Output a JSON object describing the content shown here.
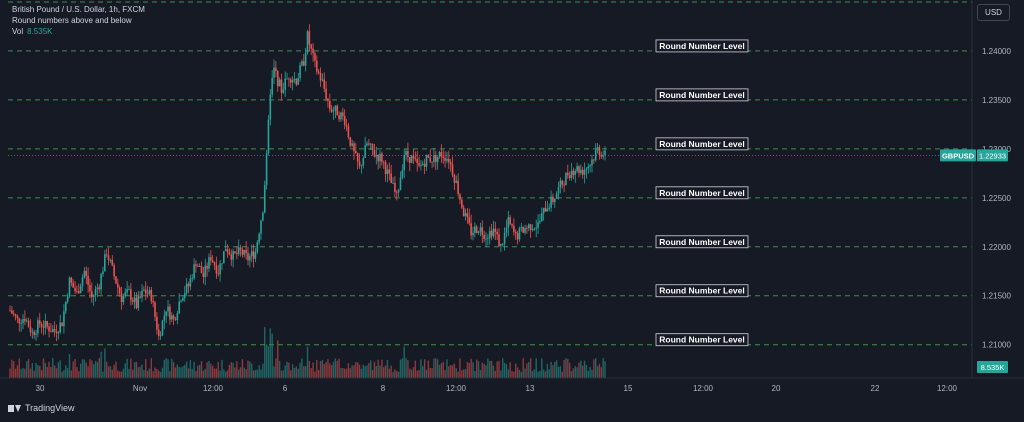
{
  "legend": {
    "symbol_line": "British Pound / U.S. Dollar, 1h, FXCM",
    "indicator_line": "Round numbers above and below",
    "volume_label": "Vol",
    "volume_value": "8.535K"
  },
  "currency_button": "USD",
  "branding": "TradingView",
  "chart_data": {
    "type": "candlestick",
    "symbol": "GBPUSD",
    "timeframe": "1h",
    "ylim": [
      1.2066,
      1.2452
    ],
    "y_ticks": [
      {
        "value": 1.21,
        "label": "1.21000"
      },
      {
        "value": 1.215,
        "label": "1.21500"
      },
      {
        "value": 1.22,
        "label": "1.22000"
      },
      {
        "value": 1.225,
        "label": "1.22500"
      },
      {
        "value": 1.23,
        "label": "1.23000"
      },
      {
        "value": 1.235,
        "label": "1.23500"
      },
      {
        "value": 1.24,
        "label": "1.24000"
      }
    ],
    "x_ticks": [
      "30",
      "Nov",
      "12:00",
      "6",
      "8",
      "12:00",
      "13",
      "15",
      "12:00",
      "20",
      "22",
      "12:00"
    ],
    "price_levels": [
      1.21,
      1.215,
      1.22,
      1.225,
      1.23,
      1.235,
      1.24
    ],
    "level_annotations": [
      {
        "price": 1.24,
        "text": "Round Number Level"
      },
      {
        "price": 1.235,
        "text": "Round Number Level"
      },
      {
        "price": 1.23,
        "text": "Round Number Level"
      },
      {
        "price": 1.225,
        "text": "Round Number Level"
      },
      {
        "price": 1.22,
        "text": "Round Number Level"
      },
      {
        "price": 1.215,
        "text": "Round Number Level"
      },
      {
        "price": 1.21,
        "text": "Round Number Level"
      }
    ],
    "last_price": {
      "symbol": "GBPUSD",
      "value": 1.22933,
      "label": "1.22933"
    },
    "volume_label": "8.535K",
    "path_points": [
      [
        0,
        1.2135
      ],
      [
        4,
        1.2125
      ],
      [
        8,
        1.2128
      ],
      [
        12,
        1.2112
      ],
      [
        16,
        1.2122
      ],
      [
        20,
        1.2118
      ],
      [
        24,
        1.2114
      ],
      [
        28,
        1.2123
      ],
      [
        32,
        1.2165
      ],
      [
        36,
        1.2152
      ],
      [
        40,
        1.2175
      ],
      [
        44,
        1.2148
      ],
      [
        48,
        1.2162
      ],
      [
        52,
        1.2195
      ],
      [
        56,
        1.217
      ],
      [
        60,
        1.2148
      ],
      [
        64,
        1.2153
      ],
      [
        68,
        1.214
      ],
      [
        72,
        1.2155
      ],
      [
        76,
        1.215
      ],
      [
        80,
        1.2108
      ],
      [
        84,
        1.2138
      ],
      [
        88,
        1.2125
      ],
      [
        92,
        1.215
      ],
      [
        96,
        1.216
      ],
      [
        100,
        1.2185
      ],
      [
        104,
        1.217
      ],
      [
        108,
        1.219
      ],
      [
        112,
        1.2175
      ],
      [
        116,
        1.22
      ],
      [
        120,
        1.219
      ],
      [
        124,
        1.2195
      ],
      [
        128,
        1.2188
      ],
      [
        132,
        1.2195
      ],
      [
        136,
        1.224
      ],
      [
        138,
        1.229
      ],
      [
        140,
        1.236
      ],
      [
        142,
        1.238
      ],
      [
        146,
        1.236
      ],
      [
        150,
        1.2375
      ],
      [
        154,
        1.237
      ],
      [
        158,
        1.239
      ],
      [
        160,
        1.2415
      ],
      [
        162,
        1.24
      ],
      [
        164,
        1.2385
      ],
      [
        168,
        1.2368
      ],
      [
        172,
        1.2342
      ],
      [
        176,
        1.2338
      ],
      [
        180,
        1.233
      ],
      [
        184,
        1.23
      ],
      [
        188,
        1.228
      ],
      [
        192,
        1.2305
      ],
      [
        196,
        1.2295
      ],
      [
        200,
        1.229
      ],
      [
        204,
        1.227
      ],
      [
        208,
        1.225
      ],
      [
        212,
        1.2295
      ],
      [
        216,
        1.229
      ],
      [
        220,
        1.228
      ],
      [
        224,
        1.229
      ],
      [
        228,
        1.229
      ],
      [
        232,
        1.2295
      ],
      [
        236,
        1.229
      ],
      [
        240,
        1.2265
      ],
      [
        244,
        1.2235
      ],
      [
        248,
        1.2215
      ],
      [
        252,
        1.222
      ],
      [
        256,
        1.2212
      ],
      [
        260,
        1.2218
      ],
      [
        264,
        1.22
      ],
      [
        268,
        1.2225
      ],
      [
        272,
        1.221
      ],
      [
        276,
        1.2218
      ],
      [
        280,
        1.2222
      ],
      [
        284,
        1.2222
      ],
      [
        288,
        1.224
      ],
      [
        292,
        1.2248
      ],
      [
        296,
        1.2262
      ],
      [
        300,
        1.2275
      ],
      [
        304,
        1.228
      ],
      [
        308,
        1.2278
      ],
      [
        312,
        1.2285
      ],
      [
        316,
        1.23
      ],
      [
        320,
        1.2293
      ]
    ]
  }
}
